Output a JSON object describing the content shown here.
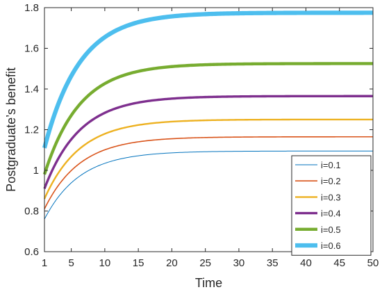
{
  "chart_data": {
    "type": "line",
    "xlabel": "Time",
    "ylabel": "Postgraduate’s benefit",
    "xlim": [
      1,
      50
    ],
    "ylim": [
      0.6,
      1.8
    ],
    "xticks": [
      1,
      5,
      10,
      15,
      20,
      25,
      30,
      35,
      40,
      45,
      50
    ],
    "xtick_labels": [
      "1",
      "5",
      "10",
      "15",
      "20",
      "25",
      "30",
      "35",
      "40",
      "45",
      "50"
    ],
    "yticks": [
      0.6,
      0.8,
      1.0,
      1.2,
      1.4,
      1.6,
      1.8
    ],
    "ytick_labels": [
      "0.6",
      "0.8",
      "1",
      "1.2",
      "1.4",
      "1.6",
      "1.8"
    ],
    "grid": false,
    "legend_position": "bottom-right",
    "series": [
      {
        "name": "i=0.1",
        "color": "#0072BD",
        "start": 0.76,
        "end": 1.095,
        "rate": 0.19
      },
      {
        "name": "i=0.2",
        "color": "#D95319",
        "start": 0.81,
        "end": 1.165,
        "rate": 0.19
      },
      {
        "name": "i=0.3",
        "color": "#EDB120",
        "start": 0.86,
        "end": 1.25,
        "rate": 0.19
      },
      {
        "name": "i=0.4",
        "color": "#7E2F8E",
        "start": 0.91,
        "end": 1.365,
        "rate": 0.19
      },
      {
        "name": "i=0.5",
        "color": "#77AC30",
        "start": 0.98,
        "end": 1.525,
        "rate": 0.19
      },
      {
        "name": "i=0.6",
        "color": "#4DBEEE",
        "start": 1.11,
        "end": 1.775,
        "rate": 0.19
      }
    ]
  }
}
